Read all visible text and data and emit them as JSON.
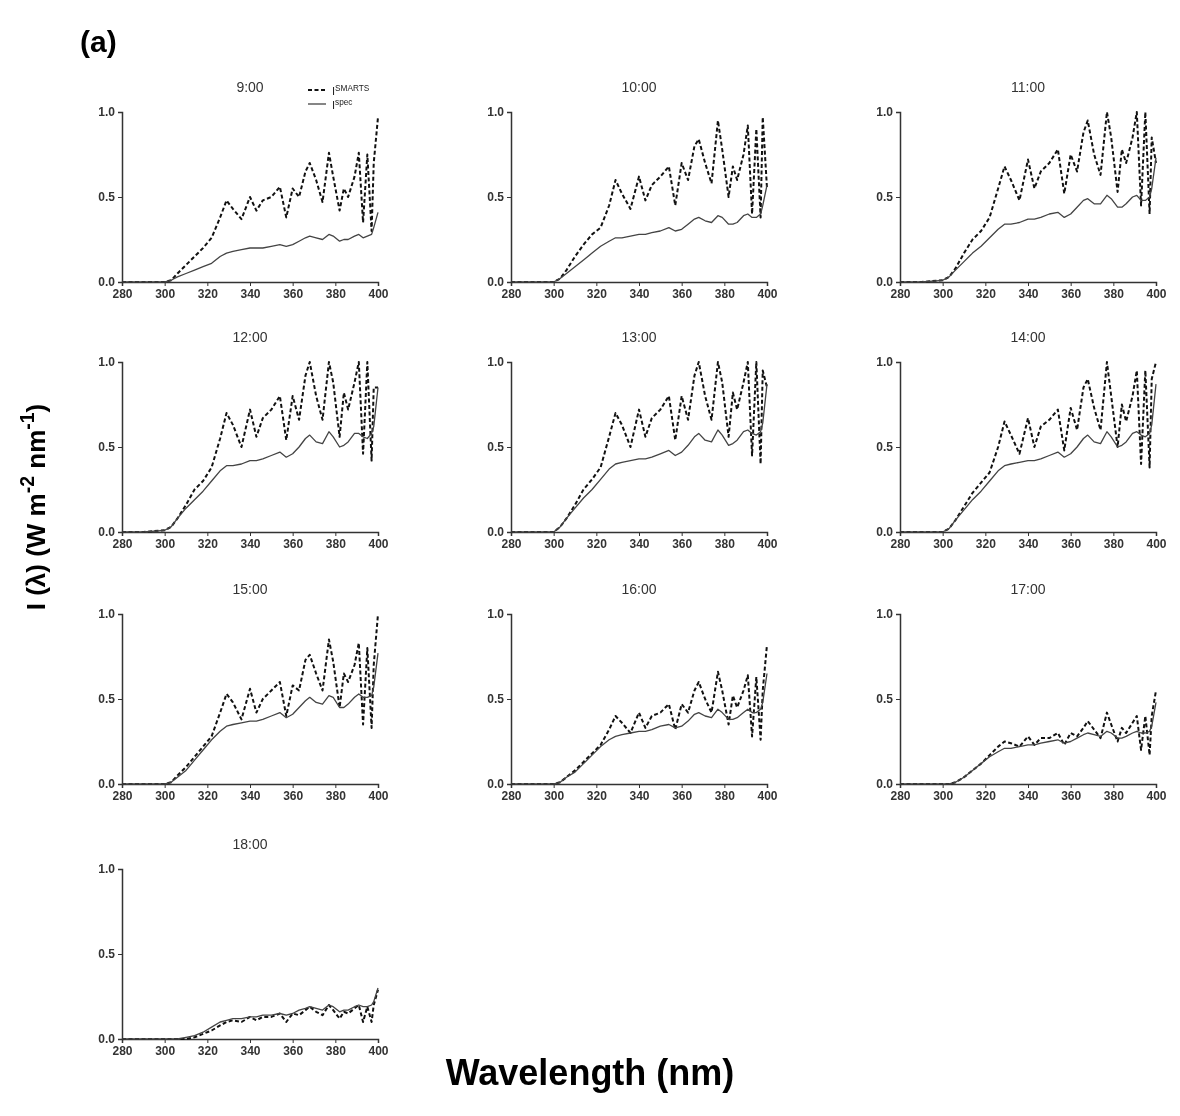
{
  "chart_data": [
    {
      "type": "line",
      "title": "9:00",
      "xlabel": "Wavelength (nm)",
      "annotations": [
        "(a)"
      ],
      "legend": "top right",
      "xlim": [
        280,
        400
      ],
      "ylim": [
        0,
        1
      ],
      "xticks": [
        280,
        300,
        320,
        340,
        360,
        380,
        400
      ],
      "yticks": [
        {
          "value": 0,
          "label": "0.0"
        },
        {
          "value": 0.5,
          "label": "0.5"
        },
        {
          "value": 1,
          "label": "1.0"
        }
      ],
      "x": [
        280,
        290,
        300,
        303,
        306,
        310,
        314,
        318,
        322,
        326,
        329,
        332,
        336,
        340,
        343,
        346,
        350,
        354,
        357,
        360,
        363,
        366,
        368,
        371,
        374,
        377,
        379,
        382,
        384,
        386,
        389,
        391,
        393,
        395,
        397,
        398,
        400
      ],
      "series": [
        {
          "name": "I$^{SMARTS}$",
          "color": "#111111",
          "line_style": "dashed",
          "values": [
            0,
            0,
            0,
            0.01,
            0.05,
            0.1,
            0.15,
            0.2,
            0.26,
            0.38,
            0.48,
            0.43,
            0.37,
            0.5,
            0.42,
            0.48,
            0.5,
            0.56,
            0.38,
            0.55,
            0.5,
            0.65,
            0.7,
            0.6,
            0.47,
            0.76,
            0.62,
            0.42,
            0.55,
            0.5,
            0.62,
            0.76,
            0.35,
            0.75,
            0.3,
            0.7,
            0.97
          ]
        },
        {
          "name": "I$^{spec}$",
          "color": "#444444",
          "line_style": "solid",
          "values": [
            0,
            0,
            0,
            0.01,
            0.03,
            0.05,
            0.07,
            0.09,
            0.11,
            0.15,
            0.17,
            0.18,
            0.19,
            0.2,
            0.2,
            0.2,
            0.21,
            0.22,
            0.21,
            0.22,
            0.24,
            0.26,
            0.27,
            0.26,
            0.25,
            0.28,
            0.27,
            0.24,
            0.25,
            0.25,
            0.27,
            0.28,
            0.26,
            0.27,
            0.28,
            0.32,
            0.41
          ]
        }
      ]
    },
    {
      "type": "line",
      "title": "10:00",
      "xlim": [
        280,
        400
      ],
      "ylim": [
        0,
        1
      ],
      "xticks": [
        280,
        300,
        320,
        340,
        360,
        380,
        400
      ],
      "yticks": [
        {
          "value": 0,
          "label": "0.0"
        },
        {
          "value": 0.5,
          "label": "0.5"
        },
        {
          "value": 1,
          "label": "1.0"
        }
      ],
      "x": [
        280,
        290,
        300,
        303,
        306,
        310,
        314,
        318,
        322,
        326,
        329,
        332,
        336,
        340,
        343,
        346,
        350,
        354,
        357,
        360,
        363,
        366,
        368,
        371,
        374,
        377,
        379,
        382,
        384,
        386,
        389,
        391,
        393,
        395,
        397,
        398,
        400
      ],
      "series": [
        {
          "color": "#111111",
          "line_style": "dashed",
          "values": [
            0,
            0,
            0,
            0.02,
            0.07,
            0.15,
            0.22,
            0.28,
            0.32,
            0.45,
            0.6,
            0.52,
            0.43,
            0.62,
            0.48,
            0.57,
            0.62,
            0.68,
            0.45,
            0.7,
            0.6,
            0.8,
            0.84,
            0.7,
            0.58,
            0.95,
            0.78,
            0.5,
            0.68,
            0.6,
            0.75,
            0.92,
            0.4,
            0.9,
            0.38,
            0.97,
            0.55
          ]
        },
        {
          "color": "#444444",
          "line_style": "solid",
          "values": [
            0,
            0,
            0,
            0.02,
            0.05,
            0.09,
            0.13,
            0.17,
            0.21,
            0.24,
            0.26,
            0.26,
            0.27,
            0.28,
            0.28,
            0.29,
            0.3,
            0.32,
            0.3,
            0.31,
            0.34,
            0.37,
            0.38,
            0.36,
            0.35,
            0.39,
            0.38,
            0.34,
            0.34,
            0.35,
            0.39,
            0.4,
            0.38,
            0.38,
            0.4,
            0.45,
            0.57
          ]
        }
      ]
    },
    {
      "type": "line",
      "title": "11:00",
      "xlim": [
        280,
        400
      ],
      "ylim": [
        0,
        1
      ],
      "xticks": [
        280,
        300,
        320,
        340,
        360,
        380,
        400
      ],
      "yticks": [
        {
          "value": 0,
          "label": "0.0"
        },
        {
          "value": 0.5,
          "label": "0.5"
        },
        {
          "value": 1,
          "label": "1.0"
        }
      ],
      "x": [
        280,
        290,
        300,
        303,
        306,
        310,
        314,
        318,
        322,
        326,
        329,
        332,
        336,
        340,
        343,
        346,
        350,
        354,
        357,
        360,
        363,
        366,
        368,
        371,
        374,
        377,
        379,
        382,
        384,
        386,
        389,
        391,
        393,
        395,
        397,
        398,
        400
      ],
      "series": [
        {
          "color": "#111111",
          "line_style": "dashed",
          "values": [
            0,
            0,
            0.01,
            0.03,
            0.08,
            0.17,
            0.25,
            0.3,
            0.38,
            0.55,
            0.68,
            0.6,
            0.48,
            0.72,
            0.55,
            0.65,
            0.7,
            0.78,
            0.52,
            0.75,
            0.65,
            0.88,
            0.95,
            0.75,
            0.63,
            1.0,
            0.85,
            0.53,
            0.78,
            0.7,
            0.85,
            1.0,
            0.45,
            1.0,
            0.4,
            0.85,
            0.7
          ]
        },
        {
          "color": "#444444",
          "line_style": "solid",
          "values": [
            0,
            0,
            0.01,
            0.03,
            0.07,
            0.12,
            0.17,
            0.21,
            0.26,
            0.31,
            0.34,
            0.34,
            0.35,
            0.37,
            0.37,
            0.38,
            0.4,
            0.41,
            0.38,
            0.4,
            0.44,
            0.48,
            0.49,
            0.46,
            0.46,
            0.51,
            0.49,
            0.44,
            0.44,
            0.46,
            0.5,
            0.51,
            0.48,
            0.48,
            0.5,
            0.55,
            0.73
          ]
        }
      ]
    },
    {
      "type": "line",
      "title": "12:00",
      "ylabel": "I (λ) (W m$^{-2}$ nm$^{-1}$)",
      "xlim": [
        280,
        400
      ],
      "ylim": [
        0,
        1
      ],
      "xticks": [
        280,
        300,
        320,
        340,
        360,
        380,
        400
      ],
      "yticks": [
        {
          "value": 0,
          "label": "0.0"
        },
        {
          "value": 0.5,
          "label": "0.5"
        },
        {
          "value": 1,
          "label": "1.0"
        }
      ],
      "x": [
        280,
        290,
        300,
        303,
        306,
        310,
        314,
        318,
        322,
        326,
        329,
        332,
        336,
        340,
        343,
        346,
        350,
        354,
        357,
        360,
        363,
        366,
        368,
        371,
        374,
        377,
        379,
        382,
        384,
        386,
        389,
        391,
        393,
        395,
        397,
        398,
        400
      ],
      "series": [
        {
          "color": "#111111",
          "line_style": "dashed",
          "values": [
            0,
            0,
            0.01,
            0.03,
            0.08,
            0.16,
            0.25,
            0.3,
            0.38,
            0.55,
            0.7,
            0.63,
            0.5,
            0.72,
            0.56,
            0.67,
            0.72,
            0.8,
            0.54,
            0.8,
            0.66,
            0.92,
            1.0,
            0.8,
            0.66,
            1.0,
            0.88,
            0.56,
            0.82,
            0.72,
            0.88,
            1.0,
            0.46,
            1.0,
            0.42,
            0.85,
            0.85
          ]
        },
        {
          "color": "#444444",
          "line_style": "solid",
          "values": [
            0,
            0,
            0.01,
            0.03,
            0.08,
            0.14,
            0.19,
            0.24,
            0.3,
            0.36,
            0.39,
            0.39,
            0.4,
            0.42,
            0.42,
            0.43,
            0.45,
            0.47,
            0.44,
            0.46,
            0.5,
            0.55,
            0.57,
            0.53,
            0.52,
            0.59,
            0.56,
            0.5,
            0.51,
            0.53,
            0.58,
            0.58,
            0.56,
            0.55,
            0.58,
            0.62,
            0.85
          ]
        }
      ]
    },
    {
      "type": "line",
      "title": "13:00",
      "xlim": [
        280,
        400
      ],
      "ylim": [
        0,
        1
      ],
      "xticks": [
        280,
        300,
        320,
        340,
        360,
        380,
        400
      ],
      "yticks": [
        {
          "value": 0,
          "label": "0.0"
        },
        {
          "value": 0.5,
          "label": "0.5"
        },
        {
          "value": 1,
          "label": "1.0"
        }
      ],
      "x": [
        280,
        290,
        300,
        303,
        306,
        310,
        314,
        318,
        322,
        326,
        329,
        332,
        336,
        340,
        343,
        346,
        350,
        354,
        357,
        360,
        363,
        366,
        368,
        371,
        374,
        377,
        379,
        382,
        384,
        386,
        389,
        391,
        393,
        395,
        397,
        398,
        400
      ],
      "series": [
        {
          "color": "#111111",
          "line_style": "dashed",
          "values": [
            0,
            0,
            0,
            0.03,
            0.08,
            0.16,
            0.25,
            0.31,
            0.38,
            0.56,
            0.7,
            0.63,
            0.5,
            0.72,
            0.56,
            0.67,
            0.72,
            0.8,
            0.54,
            0.8,
            0.66,
            0.92,
            1.0,
            0.8,
            0.66,
            1.0,
            0.88,
            0.56,
            0.82,
            0.72,
            0.88,
            1.0,
            0.45,
            1.0,
            0.4,
            0.95,
            0.85
          ]
        },
        {
          "color": "#444444",
          "line_style": "solid",
          "values": [
            0,
            0,
            0,
            0.03,
            0.08,
            0.14,
            0.2,
            0.25,
            0.31,
            0.37,
            0.4,
            0.41,
            0.42,
            0.43,
            0.43,
            0.44,
            0.46,
            0.48,
            0.45,
            0.47,
            0.51,
            0.56,
            0.58,
            0.54,
            0.53,
            0.6,
            0.57,
            0.51,
            0.52,
            0.54,
            0.59,
            0.6,
            0.58,
            0.57,
            0.59,
            0.64,
            0.87
          ]
        }
      ]
    },
    {
      "type": "line",
      "title": "14:00",
      "xlim": [
        280,
        400
      ],
      "ylim": [
        0,
        1
      ],
      "xticks": [
        280,
        300,
        320,
        340,
        360,
        380,
        400
      ],
      "yticks": [
        {
          "value": 0,
          "label": "0.0"
        },
        {
          "value": 0.5,
          "label": "0.5"
        },
        {
          "value": 1,
          "label": "1.0"
        }
      ],
      "x": [
        280,
        290,
        300,
        303,
        306,
        310,
        314,
        318,
        322,
        326,
        329,
        332,
        336,
        340,
        343,
        346,
        350,
        354,
        357,
        360,
        363,
        366,
        368,
        371,
        374,
        377,
        379,
        382,
        384,
        386,
        389,
        391,
        393,
        395,
        397,
        398,
        400
      ],
      "series": [
        {
          "color": "#111111",
          "line_style": "dashed",
          "values": [
            0,
            0,
            0,
            0.02,
            0.07,
            0.15,
            0.23,
            0.29,
            0.35,
            0.5,
            0.65,
            0.57,
            0.46,
            0.67,
            0.5,
            0.62,
            0.66,
            0.72,
            0.48,
            0.73,
            0.6,
            0.85,
            0.9,
            0.73,
            0.6,
            1.0,
            0.8,
            0.5,
            0.75,
            0.65,
            0.8,
            0.95,
            0.4,
            0.95,
            0.38,
            0.9,
            1.0
          ]
        },
        {
          "color": "#444444",
          "line_style": "solid",
          "values": [
            0,
            0,
            0,
            0.02,
            0.07,
            0.13,
            0.19,
            0.24,
            0.3,
            0.36,
            0.39,
            0.4,
            0.41,
            0.42,
            0.42,
            0.43,
            0.45,
            0.47,
            0.44,
            0.46,
            0.5,
            0.55,
            0.57,
            0.53,
            0.52,
            0.59,
            0.56,
            0.5,
            0.51,
            0.53,
            0.58,
            0.59,
            0.57,
            0.56,
            0.58,
            0.63,
            0.87
          ]
        }
      ]
    },
    {
      "type": "line",
      "title": "15:00",
      "xlim": [
        280,
        400
      ],
      "ylim": [
        0,
        1
      ],
      "xticks": [
        280,
        300,
        320,
        340,
        360,
        380,
        400
      ],
      "yticks": [
        {
          "value": 0,
          "label": "0.0"
        },
        {
          "value": 0.5,
          "label": "0.5"
        },
        {
          "value": 1,
          "label": "1.0"
        }
      ],
      "x": [
        280,
        290,
        300,
        303,
        306,
        310,
        314,
        318,
        322,
        326,
        329,
        332,
        336,
        340,
        343,
        346,
        350,
        354,
        357,
        360,
        363,
        366,
        368,
        371,
        374,
        377,
        379,
        382,
        384,
        386,
        389,
        391,
        393,
        395,
        397,
        398,
        400
      ],
      "series": [
        {
          "color": "#111111",
          "line_style": "dashed",
          "values": [
            0,
            0,
            0,
            0.01,
            0.05,
            0.1,
            0.16,
            0.22,
            0.28,
            0.42,
            0.53,
            0.48,
            0.38,
            0.56,
            0.42,
            0.5,
            0.55,
            0.6,
            0.4,
            0.58,
            0.55,
            0.73,
            0.76,
            0.65,
            0.55,
            0.85,
            0.72,
            0.45,
            0.65,
            0.6,
            0.7,
            0.83,
            0.35,
            0.8,
            0.33,
            0.7,
            1.0
          ]
        },
        {
          "color": "#444444",
          "line_style": "solid",
          "values": [
            0,
            0,
            0,
            0.01,
            0.04,
            0.08,
            0.14,
            0.2,
            0.26,
            0.31,
            0.34,
            0.35,
            0.36,
            0.37,
            0.37,
            0.38,
            0.4,
            0.42,
            0.39,
            0.41,
            0.45,
            0.49,
            0.51,
            0.48,
            0.47,
            0.52,
            0.51,
            0.45,
            0.45,
            0.47,
            0.51,
            0.53,
            0.51,
            0.51,
            0.52,
            0.57,
            0.77
          ]
        }
      ]
    },
    {
      "type": "line",
      "title": "16:00",
      "xlim": [
        280,
        400
      ],
      "ylim": [
        0,
        1
      ],
      "xticks": [
        280,
        300,
        320,
        340,
        360,
        380,
        400
      ],
      "yticks": [
        {
          "value": 0,
          "label": "0.0"
        },
        {
          "value": 0.5,
          "label": "0.5"
        },
        {
          "value": 1,
          "label": "1.0"
        }
      ],
      "x": [
        280,
        290,
        300,
        303,
        306,
        310,
        314,
        318,
        322,
        326,
        329,
        332,
        336,
        340,
        343,
        346,
        350,
        354,
        357,
        360,
        363,
        366,
        368,
        371,
        374,
        377,
        379,
        382,
        384,
        386,
        389,
        391,
        393,
        395,
        397,
        398,
        400
      ],
      "series": [
        {
          "color": "#111111",
          "line_style": "dashed",
          "values": [
            0,
            0,
            0,
            0.01,
            0.04,
            0.08,
            0.13,
            0.18,
            0.23,
            0.32,
            0.4,
            0.36,
            0.3,
            0.42,
            0.33,
            0.4,
            0.42,
            0.47,
            0.32,
            0.47,
            0.42,
            0.55,
            0.6,
            0.5,
            0.42,
            0.66,
            0.55,
            0.35,
            0.52,
            0.45,
            0.55,
            0.64,
            0.28,
            0.63,
            0.26,
            0.55,
            0.82
          ]
        },
        {
          "color": "#444444",
          "line_style": "solid",
          "values": [
            0,
            0,
            0,
            0.01,
            0.04,
            0.07,
            0.12,
            0.17,
            0.22,
            0.26,
            0.28,
            0.29,
            0.3,
            0.31,
            0.31,
            0.32,
            0.34,
            0.35,
            0.33,
            0.34,
            0.37,
            0.41,
            0.42,
            0.4,
            0.39,
            0.44,
            0.42,
            0.38,
            0.38,
            0.39,
            0.42,
            0.44,
            0.42,
            0.42,
            0.44,
            0.48,
            0.65
          ]
        }
      ]
    },
    {
      "type": "line",
      "title": "17:00",
      "xlim": [
        280,
        400
      ],
      "ylim": [
        0,
        1
      ],
      "xticks": [
        280,
        300,
        320,
        340,
        360,
        380,
        400
      ],
      "yticks": [
        {
          "value": 0,
          "label": "0.0"
        },
        {
          "value": 0.5,
          "label": "0.5"
        },
        {
          "value": 1,
          "label": "1.0"
        }
      ],
      "x": [
        280,
        290,
        300,
        303,
        306,
        310,
        314,
        318,
        322,
        326,
        329,
        332,
        336,
        340,
        343,
        346,
        350,
        354,
        357,
        360,
        363,
        366,
        368,
        371,
        374,
        377,
        379,
        382,
        384,
        386,
        389,
        391,
        393,
        395,
        397,
        398,
        400
      ],
      "series": [
        {
          "color": "#111111",
          "line_style": "dashed",
          "values": [
            0,
            0,
            0,
            0,
            0.01,
            0.04,
            0.08,
            0.12,
            0.17,
            0.22,
            0.25,
            0.24,
            0.22,
            0.28,
            0.23,
            0.27,
            0.27,
            0.3,
            0.23,
            0.3,
            0.28,
            0.33,
            0.37,
            0.32,
            0.27,
            0.42,
            0.35,
            0.25,
            0.33,
            0.3,
            0.36,
            0.4,
            0.2,
            0.4,
            0.17,
            0.4,
            0.55
          ]
        },
        {
          "color": "#444444",
          "line_style": "solid",
          "values": [
            0,
            0,
            0,
            0,
            0.01,
            0.04,
            0.08,
            0.12,
            0.16,
            0.19,
            0.21,
            0.21,
            0.22,
            0.23,
            0.23,
            0.24,
            0.25,
            0.26,
            0.24,
            0.25,
            0.27,
            0.29,
            0.3,
            0.29,
            0.28,
            0.31,
            0.3,
            0.27,
            0.27,
            0.28,
            0.3,
            0.31,
            0.3,
            0.3,
            0.31,
            0.34,
            0.48
          ]
        }
      ]
    },
    {
      "type": "line",
      "title": "18:00",
      "xlim": [
        280,
        400
      ],
      "ylim": [
        0,
        1
      ],
      "xticks": [
        280,
        300,
        320,
        340,
        360,
        380,
        400
      ],
      "yticks": [
        {
          "value": 0,
          "label": "0.0"
        },
        {
          "value": 0.5,
          "label": "0.5"
        },
        {
          "value": 1,
          "label": "1.0"
        }
      ],
      "x": [
        280,
        290,
        300,
        303,
        306,
        310,
        314,
        318,
        322,
        326,
        329,
        332,
        336,
        340,
        343,
        346,
        350,
        354,
        357,
        360,
        363,
        366,
        368,
        371,
        374,
        377,
        379,
        382,
        384,
        386,
        389,
        391,
        393,
        395,
        397,
        398,
        400
      ],
      "series": [
        {
          "color": "#111111",
          "line_style": "dashed",
          "values": [
            0,
            0,
            0,
            0,
            0,
            0,
            0.01,
            0.03,
            0.05,
            0.08,
            0.1,
            0.11,
            0.1,
            0.13,
            0.11,
            0.13,
            0.13,
            0.15,
            0.1,
            0.15,
            0.14,
            0.17,
            0.19,
            0.16,
            0.14,
            0.2,
            0.17,
            0.12,
            0.16,
            0.15,
            0.18,
            0.2,
            0.1,
            0.19,
            0.1,
            0.2,
            0.29
          ]
        },
        {
          "color": "#444444",
          "line_style": "solid",
          "values": [
            0,
            0,
            0,
            0,
            0,
            0.01,
            0.02,
            0.04,
            0.07,
            0.1,
            0.11,
            0.12,
            0.12,
            0.13,
            0.13,
            0.14,
            0.14,
            0.15,
            0.14,
            0.15,
            0.17,
            0.18,
            0.19,
            0.18,
            0.17,
            0.2,
            0.19,
            0.16,
            0.17,
            0.17,
            0.19,
            0.2,
            0.19,
            0.19,
            0.2,
            0.22,
            0.3
          ]
        }
      ]
    }
  ]
}
